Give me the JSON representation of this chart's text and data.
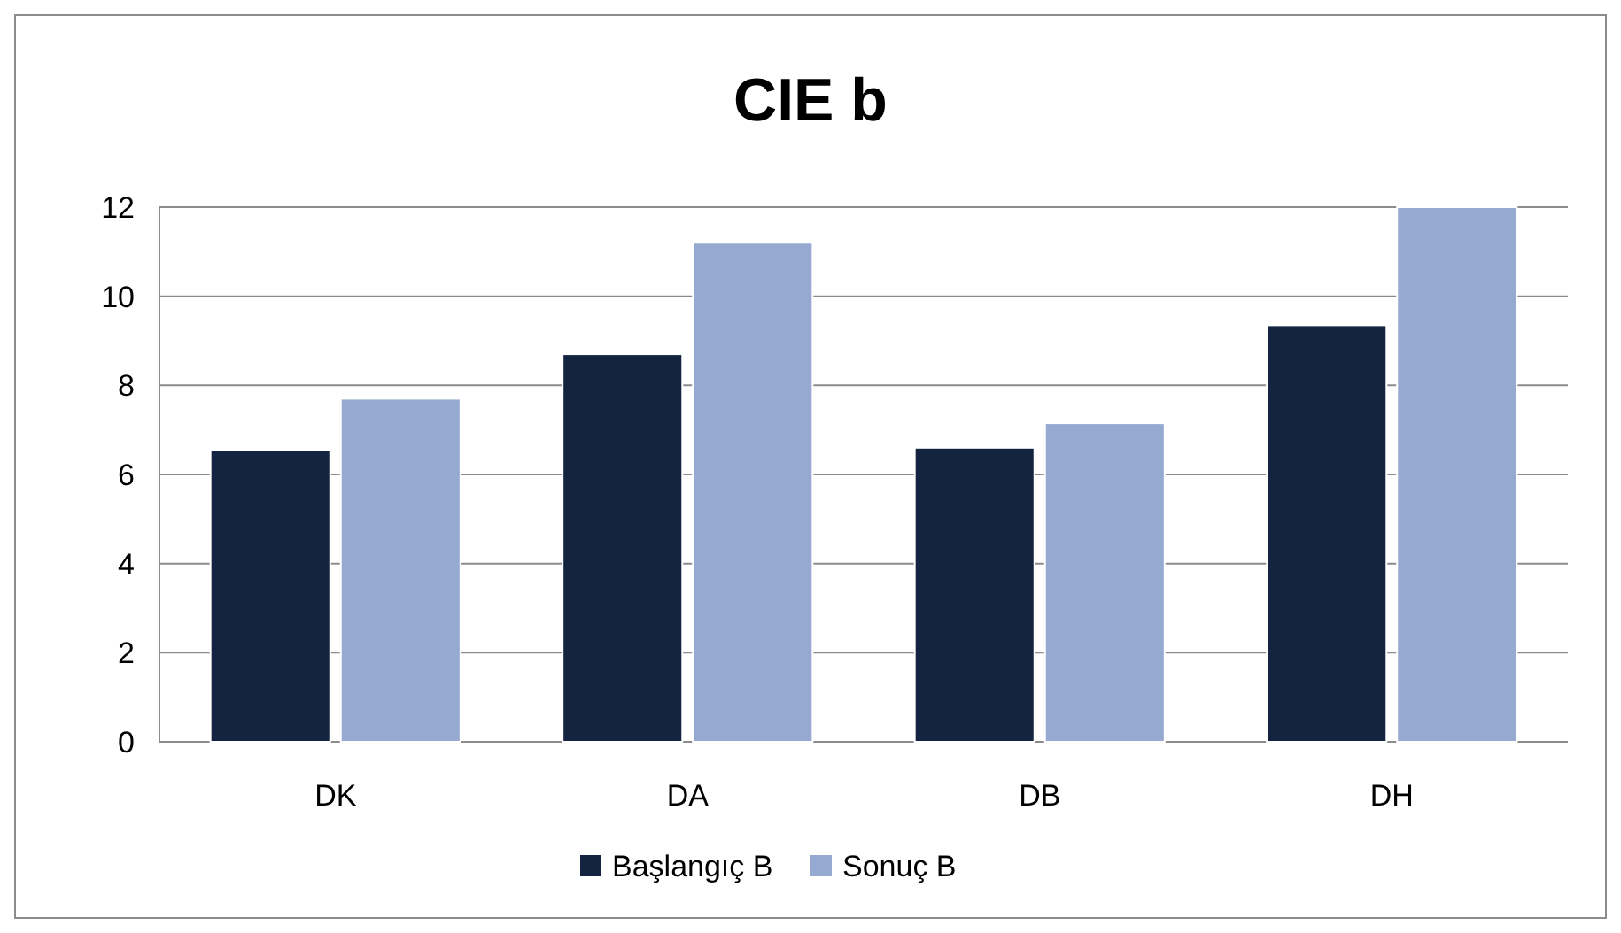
{
  "chart_data": {
    "type": "bar",
    "title": "CIE b",
    "categories": [
      "DK",
      "DA",
      "DB",
      "DH"
    ],
    "series": [
      {
        "name": "Başlangıç B",
        "color": "#14233f",
        "values": [
          6.55,
          8.7,
          6.6,
          9.35
        ]
      },
      {
        "name": "Sonuç B",
        "color": "#95a9d1",
        "values": [
          7.7,
          11.2,
          7.15,
          12
        ]
      }
    ],
    "ylim": [
      0,
      12
    ],
    "yticks": [
      0,
      2,
      4,
      6,
      8,
      10,
      12
    ],
    "grid": "y",
    "legend": "bottom"
  }
}
